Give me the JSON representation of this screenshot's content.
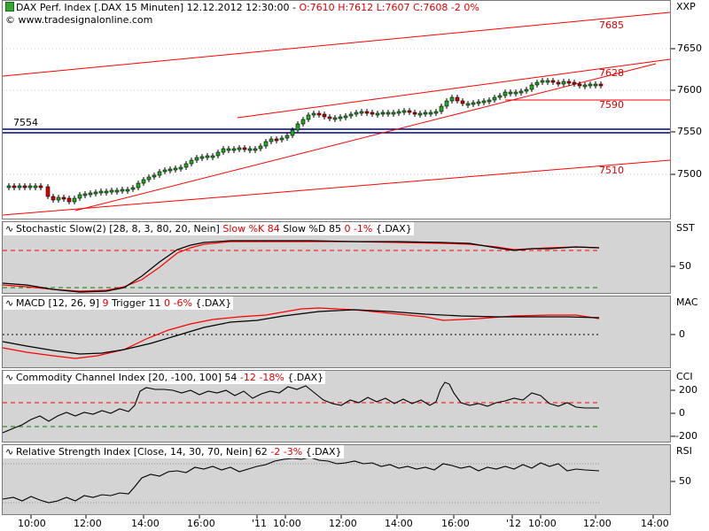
{
  "price_pane": {
    "symbol_line": "DAX Perf. Index [.DAX  15 Minuten] 12.12.2012 12:30:00 -",
    "ohlc_o": "O:7610",
    "ohlc_h": "H:7612",
    "ohlc_l": "L:7607",
    "ohlc_c": "C:7608",
    "change": "-2",
    "change_pct": "0%",
    "copyright": "© www.tradesignalonline.com",
    "scale_name": "XXP",
    "ticks": [
      "7650",
      "7600",
      "7550",
      "7500"
    ],
    "level_label": "7554",
    "red_labels": [
      "7685",
      "7628",
      "7590",
      "7510"
    ],
    "colors": {
      "up": "#22aa22",
      "down": "#dd0000",
      "trend": "#ff0000",
      "level": "#000080"
    }
  },
  "stochastic": {
    "title": "Stochastic Slow(2) [28, 8, 3, 80, 20, Nein]",
    "k": "Slow %K 84",
    "d": "Slow %D 85",
    "change": "0",
    "change_pct": "-1%",
    "symbol": "{.DAX}",
    "scale_name": "SST",
    "tick": "50"
  },
  "macd": {
    "title": "MACD [12, 26, 9]",
    "value": "9",
    "trigger": "Trigger 11",
    "change": "0",
    "change_pct": "-6%",
    "symbol": "{.DAX}",
    "scale_name": "MAC",
    "tick": "0"
  },
  "cci": {
    "title": "Commodity Channel Index [20, -100, 100]",
    "value": "54",
    "change": "-12",
    "change_pct": "-18%",
    "symbol": "{.DAX}",
    "scale_name": "CCI",
    "ticks": [
      "200",
      "0",
      "-200"
    ]
  },
  "rsi": {
    "title": "Relative Strength Index [Close, 14, 30, 70, Nein]",
    "value": "62",
    "change": "-2",
    "change_pct": "-3%",
    "symbol": "{.DAX}",
    "scale_name": "RSI",
    "tick": "50"
  },
  "x_axis": [
    "10:00",
    "12:00",
    "14:00",
    "16:00",
    "'11",
    "10:00",
    "12:00",
    "14:00",
    "16:00",
    "'12",
    "10:00",
    "12:00",
    "14:00"
  ]
}
